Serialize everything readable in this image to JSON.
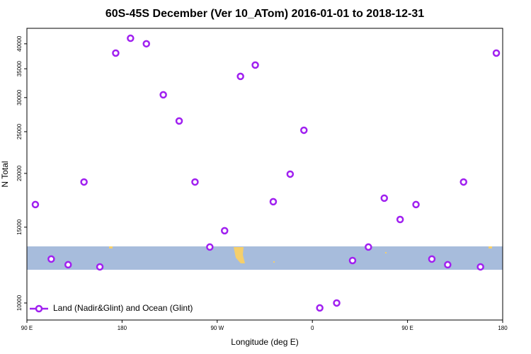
{
  "chart_data": {
    "type": "scatter",
    "title": "60S-45S December (Ver 10_ATom)   2016-01-01 to 2018-12-31",
    "x_label": "Longitude (deg E)",
    "y_label": "N Total",
    "xlim": [
      -270,
      180
    ],
    "xticks": [
      {
        "value": -270,
        "label": "90 E"
      },
      {
        "value": -180,
        "label": "180"
      },
      {
        "value": -90,
        "label": "90 W"
      },
      0,
      {
        "value": 90,
        "label": "90 E"
      },
      {
        "value": 180,
        "label": "180"
      }
    ],
    "ylim": [
      9130,
      43450
    ],
    "log_y": true,
    "yticks": [
      10000,
      15000,
      20000,
      25000,
      30000,
      35000,
      40000
    ],
    "legend": "bottom-left",
    "series": [
      {
        "name": "Land (Nadir&Glint) and Ocean (Glint)",
        "color": "#a020f0",
        "x": [
          -262,
          -247,
          -231,
          -216,
          -201,
          -186,
          -172,
          -157,
          -141,
          -126,
          -111,
          -97,
          -83,
          -68,
          -54,
          -37,
          -21,
          -8,
          7,
          23,
          38,
          53,
          68,
          83,
          98,
          113,
          128,
          143,
          159,
          174
        ],
        "values": [
          16930,
          12650,
          12270,
          19100,
          12130,
          38060,
          41200,
          40000,
          30450,
          26470,
          19100,
          13490,
          14720,
          33600,
          35700,
          17190,
          19920,
          25190,
          9740,
          10000,
          12550,
          13490,
          17520,
          15630,
          16930,
          12650,
          12270,
          19100,
          12130,
          38060
        ]
      }
    ]
  }
}
